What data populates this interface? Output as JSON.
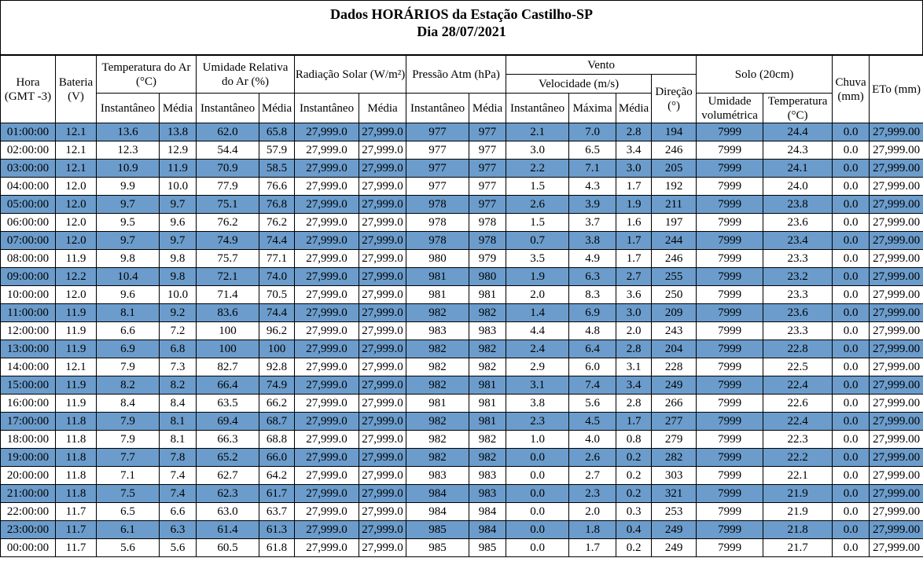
{
  "title": "Dados HORÁRIOS da Estação Castilho-SP",
  "subtitle": "Dia 28/07/2021",
  "headers": {
    "hora": "Hora (GMT -3)",
    "bateria": "Bateria (V)",
    "temperatura": "Temperatura do Ar (°C)",
    "umidade": "Umidade Relativa do Ar (%)",
    "radiacao": "Radiação Solar (W/m²)",
    "pressao": "Pressão Atm (hPa)",
    "vento": "Vento",
    "velocidade": "Velocidade (m/s)",
    "direcao": "Direção (°)",
    "solo": "Solo (20cm)",
    "umidade_volumetrica": "Umidade volumétrica",
    "temperatura_solo": "Temperatura (°C)",
    "chuva": "Chuva (mm)",
    "eto": "ETo (mm)",
    "instantaneo": "Instantâneo",
    "media": "Média",
    "maxima": "Máxima"
  },
  "rows": [
    [
      "01:00:00",
      "12.1",
      "13.6",
      "13.8",
      "62.0",
      "65.8",
      "27,999.0",
      "27,999.0",
      "977",
      "977",
      "2.1",
      "7.0",
      "2.8",
      "194",
      "7999",
      "24.4",
      "0.0",
      "27,999.00"
    ],
    [
      "02:00:00",
      "12.1",
      "12.3",
      "12.9",
      "54.4",
      "57.9",
      "27,999.0",
      "27,999.0",
      "977",
      "977",
      "3.0",
      "6.5",
      "3.4",
      "246",
      "7999",
      "24.3",
      "0.0",
      "27,999.00"
    ],
    [
      "03:00:00",
      "12.1",
      "10.9",
      "11.9",
      "70.9",
      "58.5",
      "27,999.0",
      "27,999.0",
      "977",
      "977",
      "2.2",
      "7.1",
      "3.0",
      "205",
      "7999",
      "24.1",
      "0.0",
      "27,999.00"
    ],
    [
      "04:00:00",
      "12.0",
      "9.9",
      "10.0",
      "77.9",
      "76.6",
      "27,999.0",
      "27,999.0",
      "977",
      "977",
      "1.5",
      "4.3",
      "1.7",
      "192",
      "7999",
      "24.0",
      "0.0",
      "27,999.00"
    ],
    [
      "05:00:00",
      "12.0",
      "9.7",
      "9.7",
      "75.1",
      "76.8",
      "27,999.0",
      "27,999.0",
      "978",
      "977",
      "2.6",
      "3.9",
      "1.9",
      "211",
      "7999",
      "23.8",
      "0.0",
      "27,999.00"
    ],
    [
      "06:00:00",
      "12.0",
      "9.5",
      "9.6",
      "76.2",
      "76.2",
      "27,999.0",
      "27,999.0",
      "978",
      "978",
      "1.5",
      "3.7",
      "1.6",
      "197",
      "7999",
      "23.6",
      "0.0",
      "27,999.00"
    ],
    [
      "07:00:00",
      "12.0",
      "9.7",
      "9.7",
      "74.9",
      "74.4",
      "27,999.0",
      "27,999.0",
      "978",
      "978",
      "0.7",
      "3.8",
      "1.7",
      "244",
      "7999",
      "23.4",
      "0.0",
      "27,999.00"
    ],
    [
      "08:00:00",
      "11.9",
      "9.8",
      "9.8",
      "75.7",
      "77.1",
      "27,999.0",
      "27,999.0",
      "980",
      "979",
      "3.5",
      "4.9",
      "1.7",
      "246",
      "7999",
      "23.3",
      "0.0",
      "27,999.00"
    ],
    [
      "09:00:00",
      "12.2",
      "10.4",
      "9.8",
      "72.1",
      "74.0",
      "27,999.0",
      "27,999.0",
      "981",
      "980",
      "1.9",
      "6.3",
      "2.7",
      "255",
      "7999",
      "23.2",
      "0.0",
      "27,999.00"
    ],
    [
      "10:00:00",
      "12.0",
      "9.6",
      "10.0",
      "71.4",
      "70.5",
      "27,999.0",
      "27,999.0",
      "981",
      "981",
      "2.0",
      "8.3",
      "3.6",
      "250",
      "7999",
      "23.3",
      "0.0",
      "27,999.00"
    ],
    [
      "11:00:00",
      "11.9",
      "8.1",
      "9.2",
      "83.6",
      "74.4",
      "27,999.0",
      "27,999.0",
      "982",
      "982",
      "1.4",
      "6.9",
      "3.0",
      "209",
      "7999",
      "23.6",
      "0.0",
      "27,999.00"
    ],
    [
      "12:00:00",
      "11.9",
      "6.6",
      "7.2",
      "100",
      "96.2",
      "27,999.0",
      "27,999.0",
      "983",
      "983",
      "4.4",
      "4.8",
      "2.0",
      "243",
      "7999",
      "23.3",
      "0.0",
      "27,999.00"
    ],
    [
      "13:00:00",
      "11.9",
      "6.9",
      "6.8",
      "100",
      "100",
      "27,999.0",
      "27,999.0",
      "982",
      "982",
      "2.4",
      "6.4",
      "2.8",
      "204",
      "7999",
      "22.8",
      "0.0",
      "27,999.00"
    ],
    [
      "14:00:00",
      "12.1",
      "7.9",
      "7.3",
      "82.7",
      "92.8",
      "27,999.0",
      "27,999.0",
      "982",
      "982",
      "2.9",
      "6.0",
      "3.1",
      "228",
      "7999",
      "22.5",
      "0.0",
      "27,999.00"
    ],
    [
      "15:00:00",
      "11.9",
      "8.2",
      "8.2",
      "66.4",
      "74.9",
      "27,999.0",
      "27,999.0",
      "982",
      "981",
      "3.1",
      "7.4",
      "3.4",
      "249",
      "7999",
      "22.4",
      "0.0",
      "27,999.00"
    ],
    [
      "16:00:00",
      "11.9",
      "8.4",
      "8.4",
      "63.5",
      "66.2",
      "27,999.0",
      "27,999.0",
      "981",
      "981",
      "3.8",
      "5.6",
      "2.8",
      "266",
      "7999",
      "22.6",
      "0.0",
      "27,999.00"
    ],
    [
      "17:00:00",
      "11.8",
      "7.9",
      "8.1",
      "69.4",
      "68.7",
      "27,999.0",
      "27,999.0",
      "982",
      "981",
      "2.3",
      "4.5",
      "1.7",
      "277",
      "7999",
      "22.4",
      "0.0",
      "27,999.00"
    ],
    [
      "18:00:00",
      "11.8",
      "7.9",
      "8.1",
      "66.3",
      "68.8",
      "27,999.0",
      "27,999.0",
      "982",
      "982",
      "1.0",
      "4.0",
      "0.8",
      "279",
      "7999",
      "22.3",
      "0.0",
      "27,999.00"
    ],
    [
      "19:00:00",
      "11.8",
      "7.7",
      "7.8",
      "65.2",
      "66.0",
      "27,999.0",
      "27,999.0",
      "982",
      "982",
      "0.0",
      "2.6",
      "0.2",
      "282",
      "7999",
      "22.2",
      "0.0",
      "27,999.00"
    ],
    [
      "20:00:00",
      "11.8",
      "7.1",
      "7.4",
      "62.7",
      "64.2",
      "27,999.0",
      "27,999.0",
      "983",
      "983",
      "0.0",
      "2.7",
      "0.2",
      "303",
      "7999",
      "22.1",
      "0.0",
      "27,999.00"
    ],
    [
      "21:00:00",
      "11.8",
      "7.5",
      "7.4",
      "62.3",
      "61.7",
      "27,999.0",
      "27,999.0",
      "984",
      "983",
      "0.0",
      "2.3",
      "0.2",
      "321",
      "7999",
      "21.9",
      "0.0",
      "27,999.00"
    ],
    [
      "22:00:00",
      "11.7",
      "6.5",
      "6.6",
      "63.0",
      "63.7",
      "27,999.0",
      "27,999.0",
      "984",
      "984",
      "0.0",
      "2.0",
      "0.3",
      "253",
      "7999",
      "21.9",
      "0.0",
      "27,999.00"
    ],
    [
      "23:00:00",
      "11.7",
      "6.1",
      "6.3",
      "61.4",
      "61.3",
      "27,999.0",
      "27,999.0",
      "985",
      "984",
      "0.0",
      "1.8",
      "0.4",
      "249",
      "7999",
      "21.8",
      "0.0",
      "27,999.00"
    ],
    [
      "00:00:00",
      "11.7",
      "5.6",
      "5.6",
      "60.5",
      "61.8",
      "27,999.0",
      "27,999.0",
      "985",
      "985",
      "0.0",
      "1.7",
      "0.2",
      "249",
      "7999",
      "21.7",
      "0.0",
      "27,999.00"
    ]
  ]
}
